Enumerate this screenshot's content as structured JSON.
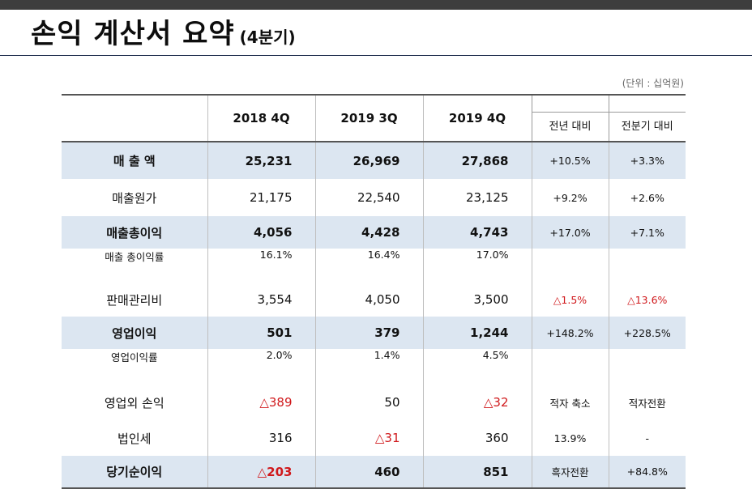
{
  "title": {
    "main": "손익 계산서 요약",
    "sub": "(4분기)"
  },
  "unit": "(단위 : 십억원)",
  "header": {
    "periods": [
      "2018 4Q",
      "2019 3Q",
      "2019 4Q"
    ],
    "comparisons": [
      "전년 대비",
      "전분기 대비"
    ]
  },
  "rows": [
    {
      "label": "매 출 액",
      "values": [
        "25,231",
        "26,969",
        "27,868"
      ],
      "yoy": "+10.5%",
      "qoq": "+3.3%"
    },
    {
      "label": "매출원가",
      "values": [
        "21,175",
        "22,540",
        "23,125"
      ],
      "yoy": "+9.2%",
      "qoq": "+2.6%"
    },
    {
      "label": "매출총이익",
      "values": [
        "4,056",
        "4,428",
        "4,743"
      ],
      "yoy": "+17.0%",
      "qoq": "+7.1%"
    },
    {
      "label": "매출 총이익률",
      "values": [
        "16.1%",
        "16.4%",
        "17.0%"
      ],
      "yoy": "",
      "qoq": ""
    },
    {
      "label": "판매관리비",
      "values": [
        "3,554",
        "4,050",
        "3,500"
      ],
      "yoy": "△1.5%",
      "qoq": "△13.6%"
    },
    {
      "label": "영업이익",
      "values": [
        "501",
        "379",
        "1,244"
      ],
      "yoy": "+148.2%",
      "qoq": "+228.5%"
    },
    {
      "label": "영업이익률",
      "values": [
        "2.0%",
        "1.4%",
        "4.5%"
      ],
      "yoy": "",
      "qoq": ""
    },
    {
      "label": "영업외 손익",
      "values": [
        "△389",
        "50",
        "△32"
      ],
      "yoy": "적자 축소",
      "qoq": "적자전환"
    },
    {
      "label": "법인세",
      "values": [
        "316",
        "△31",
        "360"
      ],
      "yoy": "13.9%",
      "qoq": "-"
    },
    {
      "label": "당기순이익",
      "values": [
        "△203",
        "460",
        "851"
      ],
      "yoy": "흑자전환",
      "qoq": "+84.8%"
    }
  ],
  "colors": {
    "highlight_row": "#dce6f1",
    "negative": "#d0191c",
    "title_rule": "#1b2a4a"
  }
}
